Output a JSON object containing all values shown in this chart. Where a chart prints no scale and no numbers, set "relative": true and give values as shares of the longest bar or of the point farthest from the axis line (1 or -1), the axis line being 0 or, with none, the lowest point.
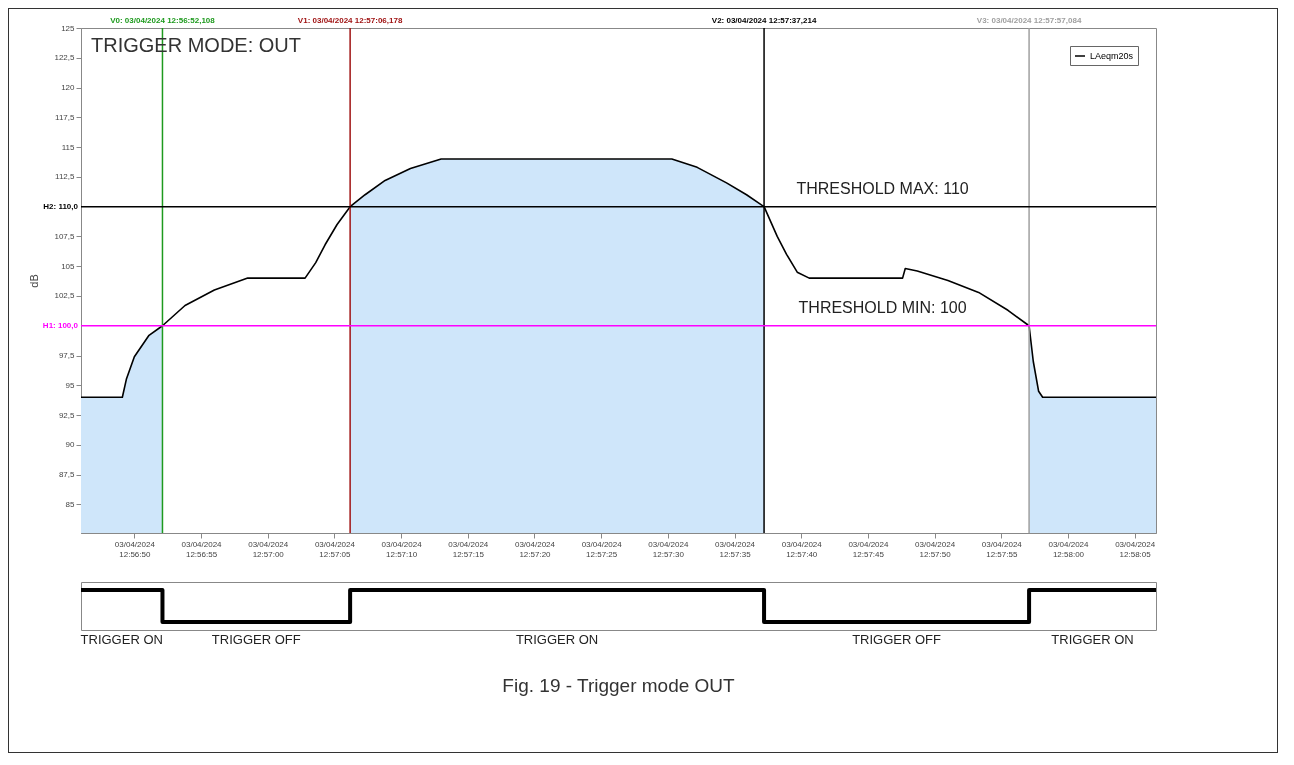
{
  "chart_data": [
    {
      "type": "line",
      "ylabel": "dB",
      "legend": "top right",
      "x": [
        "2024-04-03T12:56:46",
        "2024-04-03T12:56:49.1",
        "2024-04-03T12:56:49.4",
        "2024-04-03T12:56:50",
        "2024-04-03T12:56:51.1",
        "2024-04-03T12:56:52.108",
        "2024-04-03T12:56:53.8",
        "2024-04-03T12:56:56",
        "2024-04-03T12:56:58.5",
        "2024-04-03T12:57:02.8",
        "2024-04-03T12:57:03.6",
        "2024-04-03T12:57:04.3",
        "2024-04-03T12:57:05.2",
        "2024-04-03T12:57:06.178",
        "2024-04-03T12:57:07.3",
        "2024-04-03T12:57:08.8",
        "2024-04-03T12:57:10.7",
        "2024-04-03T12:57:13",
        "2024-04-03T12:57:30.3",
        "2024-04-03T12:57:32.2",
        "2024-04-03T12:57:34.4",
        "2024-04-03T12:57:35.9",
        "2024-04-03T12:57:37.214",
        "2024-04-03T12:57:38.2",
        "2024-04-03T12:57:38.9",
        "2024-04-03T12:57:39.7",
        "2024-04-03T12:57:40.6",
        "2024-04-03T12:57:47.6",
        "2024-04-03T12:57:47.8",
        "2024-04-03T12:57:48.7",
        "2024-04-03T12:57:51",
        "2024-04-03T12:57:53.3",
        "2024-04-03T12:57:55.5",
        "2024-04-03T12:57:57.084",
        "2024-04-03T12:57:57.4",
        "2024-04-03T12:57:57.8",
        "2024-04-03T12:57:58.1",
        "2024-04-03T12:58:06.6"
      ],
      "series": [
        {
          "type": "area",
          "color": "#cfe6fa",
          "values": [
            94,
            94,
            95.5,
            97.4,
            99.2,
            100,
            null,
            null,
            null,
            null,
            null,
            null,
            null,
            110,
            111,
            112.2,
            113.2,
            114,
            114,
            113.3,
            112,
            111,
            110,
            null,
            null,
            null,
            null,
            null,
            null,
            null,
            null,
            null,
            null,
            100,
            97,
            94.5,
            94,
            94
          ]
        },
        {
          "name": "LAeqm20s",
          "color": "#000000",
          "values": [
            94,
            94,
            95.5,
            97.4,
            99.2,
            100,
            101.7,
            103,
            104,
            104,
            105.3,
            106.8,
            108.5,
            110,
            111,
            112.2,
            113.2,
            114,
            114,
            113.3,
            112,
            111,
            110,
            107.5,
            106,
            104.5,
            104,
            104,
            104.8,
            104.6,
            103.8,
            102.8,
            101.3,
            100,
            97,
            94.5,
            94,
            94
          ]
        }
      ],
      "xlim": [
        "2024-04-03T12:56:46",
        "2024-04-03T12:58:06.6"
      ],
      "xticks": [
        {
          "value": "2024-04-03T12:56:50",
          "label": "03/04/2024\n12:56:50"
        },
        {
          "value": "2024-04-03T12:56:55",
          "label": "03/04/2024\n12:56:55"
        },
        {
          "value": "2024-04-03T12:57:00",
          "label": "03/04/2024\n12:57:00"
        },
        {
          "value": "2024-04-03T12:57:05",
          "label": "03/04/2024\n12:57:05"
        },
        {
          "value": "2024-04-03T12:57:10",
          "label": "03/04/2024\n12:57:10"
        },
        {
          "value": "2024-04-03T12:57:15",
          "label": "03/04/2024\n12:57:15"
        },
        {
          "value": "2024-04-03T12:57:20",
          "label": "03/04/2024\n12:57:20"
        },
        {
          "value": "2024-04-03T12:57:25",
          "label": "03/04/2024\n12:57:25"
        },
        {
          "value": "2024-04-03T12:57:30",
          "label": "03/04/2024\n12:57:30"
        },
        {
          "value": "2024-04-03T12:57:35",
          "label": "03/04/2024\n12:57:35"
        },
        {
          "value": "2024-04-03T12:57:40",
          "label": "03/04/2024\n12:57:40"
        },
        {
          "value": "2024-04-03T12:57:45",
          "label": "03/04/2024\n12:57:45"
        },
        {
          "value": "2024-04-03T12:57:50",
          "label": "03/04/2024\n12:57:50"
        },
        {
          "value": "2024-04-03T12:57:55",
          "label": "03/04/2024\n12:57:55"
        },
        {
          "value": "2024-04-03T12:58:00",
          "label": "03/04/2024\n12:58:00"
        },
        {
          "value": "2024-04-03T12:58:05",
          "label": "03/04/2024\n12:58:05"
        }
      ],
      "ylim": [
        82.6,
        125
      ],
      "yticks": [
        85,
        {
          "value": 87.5,
          "label": "87,5"
        },
        90,
        {
          "value": 92.5,
          "label": "92,5"
        },
        95,
        {
          "value": 97.5,
          "label": "97,5"
        },
        {
          "value": 102.5,
          "label": "102,5"
        },
        105,
        {
          "value": 107.5,
          "label": "107,5"
        },
        {
          "value": 112.5,
          "label": "112,5"
        },
        115,
        {
          "value": 117.5,
          "label": "117,5"
        },
        120,
        {
          "value": 122.5,
          "label": "122,5"
        },
        125
      ],
      "ref_lines": [
        {
          "axis": "x",
          "value": "2024-04-03T12:56:52.108",
          "label": "V0: 03/04/2024 12:56:52,108",
          "color": "#1e9a1e"
        },
        {
          "axis": "x",
          "value": "2024-04-03T12:57:06.178",
          "label": "V1: 03/04/2024 12:57:06,178",
          "color": "#a01414"
        },
        {
          "axis": "x",
          "value": "2024-04-03T12:57:37.214",
          "label": "V2: 03/04/2024 12:57:37,214",
          "color": "#000000"
        },
        {
          "axis": "x",
          "value": "2024-04-03T12:57:57.084",
          "label": "V3: 03/04/2024 12:57:57,084",
          "color": "#a0a0a0"
        },
        {
          "axis": "y",
          "value": 110,
          "label": "H2: 110,0",
          "color": "#000000"
        },
        {
          "axis": "y",
          "value": 100,
          "label": "H1: 100,0",
          "color": "#ff00ff"
        }
      ],
      "annotations": [
        "TRIGGER MODE: OUT",
        {
          "text": "THRESHOLD MAX: 110",
          "x": "2024-04-03T12:57:46.1",
          "y": 110
        },
        {
          "text": "THRESHOLD MIN: 100",
          "x": "2024-04-03T12:57:46.1",
          "y": 100
        }
      ]
    },
    {
      "type": "step",
      "relative": true,
      "color": "#000000",
      "title": "Fig. 19 - Trigger mode OUT",
      "x": [
        "2024-04-03T12:56:46",
        "2024-04-03T12:56:52.108",
        "2024-04-03T12:57:06.178",
        "2024-04-03T12:57:37.214",
        "2024-04-03T12:57:57.084",
        "2024-04-03T12:58:06.6"
      ],
      "values": [
        1,
        0,
        1,
        0,
        1,
        1
      ],
      "xlim": [
        "2024-04-03T12:56:46",
        "2024-04-03T12:58:06.6"
      ],
      "annotations": [
        "TRIGGER ON",
        "TRIGGER OFF",
        "TRIGGER ON",
        "TRIGGER OFF",
        "TRIGGER ON"
      ]
    }
  ]
}
